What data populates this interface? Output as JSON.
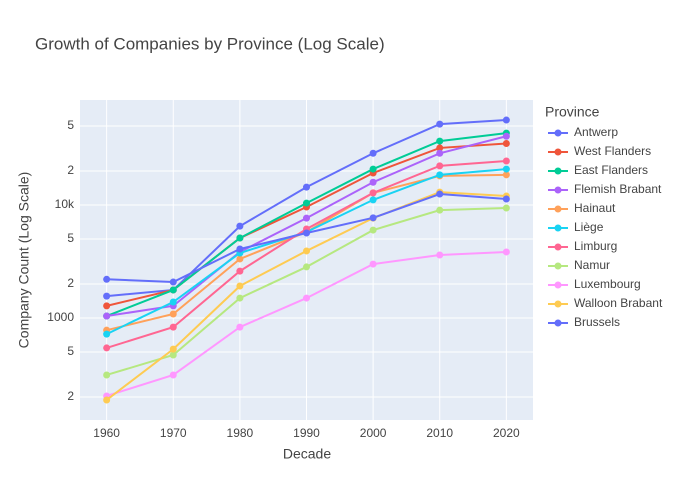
{
  "chart_data": {
    "type": "line",
    "title": "Growth of Companies by Province (Log Scale)",
    "x_label": "Decade",
    "y_label": "Company Count (Log Scale)",
    "legend_title": "Province",
    "log_y": true,
    "grid": true,
    "x": [
      1960,
      1970,
      1980,
      1990,
      2000,
      2010,
      2020
    ],
    "xlim": [
      1956,
      2024
    ],
    "xticks": [
      1960,
      1970,
      1980,
      1990,
      2000,
      2010,
      2020
    ],
    "ylim": [
      125,
      85000
    ],
    "yticks": [
      {
        "value": 200,
        "label": "2"
      },
      {
        "value": 500,
        "label": "5"
      },
      1000,
      {
        "value": 2000,
        "label": "2"
      },
      {
        "value": 5000,
        "label": "5"
      },
      {
        "value": 10000,
        "label": "10k"
      },
      {
        "value": 20000,
        "label": "2"
      },
      {
        "value": 50000,
        "label": "5"
      }
    ],
    "series": [
      {
        "name": "Antwerp",
        "color": "#636efa",
        "values": [
          1560,
          1770,
          6500,
          14400,
          28700,
          52000,
          56500
        ]
      },
      {
        "name": "West Flanders",
        "color": "#EF553B",
        "values": [
          1280,
          1770,
          5100,
          9600,
          19200,
          32000,
          35000
        ]
      },
      {
        "name": "East Flanders",
        "color": "#00cc96",
        "values": [
          1040,
          1770,
          5100,
          10400,
          20800,
          36800,
          43300
        ]
      },
      {
        "name": "Flemish Brabant",
        "color": "#ab63fa",
        "values": [
          1040,
          1280,
          3840,
          7650,
          15900,
          28700,
          40600
        ]
      },
      {
        "name": "Hainaut",
        "color": "#FFA15A",
        "values": [
          780,
          1085,
          3330,
          5770,
          12800,
          18100,
          18500
        ]
      },
      {
        "name": "Liège",
        "color": "#19d3f3",
        "values": [
          720,
          1385,
          3760,
          5770,
          11100,
          18500,
          20800
        ]
      },
      {
        "name": "Limburg",
        "color": "#FF6692",
        "values": [
          543,
          830,
          2600,
          6130,
          12800,
          22200,
          24500
        ]
      },
      {
        "name": "Namur",
        "color": "#B6E880",
        "values": [
          313,
          470,
          1500,
          2830,
          6000,
          9000,
          9400
        ]
      },
      {
        "name": "Luxembourg",
        "color": "#FF97FF",
        "values": [
          204,
          313,
          830,
          1500,
          3000,
          3610,
          3840
        ]
      },
      {
        "name": "Walloon Brabant",
        "color": "#FECB52",
        "values": [
          188,
          530,
          1920,
          3920,
          7650,
          13000,
          12000
        ]
      },
      {
        "name": "Brussels",
        "color": "#636efa",
        "values": [
          2200,
          2080,
          4080,
          5650,
          7700,
          12500,
          11300
        ]
      }
    ]
  }
}
